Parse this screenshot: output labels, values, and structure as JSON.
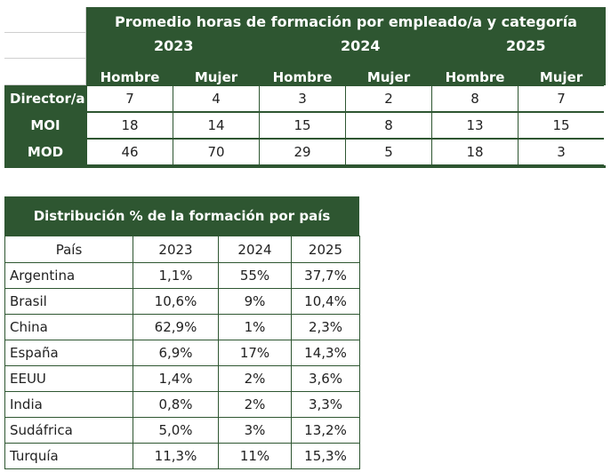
{
  "horas": {
    "title": "Promedio horas de formación por empleado/a y categoría",
    "years": [
      "2023",
      "2024",
      "2025"
    ],
    "sexes": [
      "Hombre",
      "Mujer",
      "Hombre",
      "Mujer",
      "Hombre",
      "Mujer"
    ],
    "rows": [
      {
        "label": "Director/a",
        "values": [
          "7",
          "4",
          "3",
          "2",
          "8",
          "7"
        ]
      },
      {
        "label": "MOI",
        "values": [
          "18",
          "14",
          "15",
          "8",
          "13",
          "15"
        ]
      },
      {
        "label": "MOD",
        "values": [
          "46",
          "70",
          "29",
          "5",
          "18",
          "3"
        ]
      }
    ]
  },
  "distribucion": {
    "title": "Distribución % de la formación por país",
    "headers": [
      "País",
      "2023",
      "2024",
      "2025"
    ],
    "rows": [
      [
        "Argentina",
        "1,1%",
        "55%",
        "37,7%"
      ],
      [
        "Brasil",
        "10,6%",
        "9%",
        "10,4%"
      ],
      [
        "China",
        "62,9%",
        "1%",
        "2,3%"
      ],
      [
        "España",
        "6,9%",
        "17%",
        "14,3%"
      ],
      [
        "EEUU",
        "1,4%",
        "2%",
        "3,6%"
      ],
      [
        "India",
        "0,8%",
        "2%",
        "3,3%"
      ],
      [
        "Sudáfrica",
        "5,0%",
        "3%",
        "13,2%"
      ],
      [
        "Turquía",
        "11,3%",
        "11%",
        "15,3%"
      ]
    ]
  }
}
